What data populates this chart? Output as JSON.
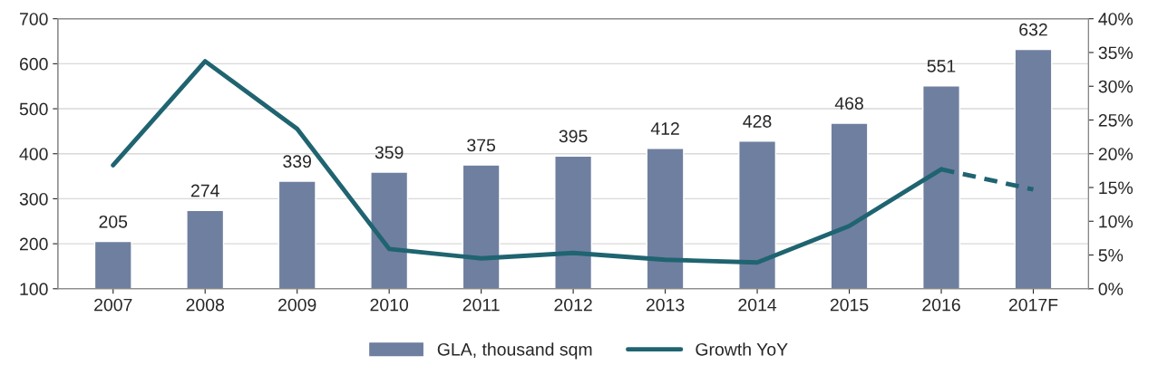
{
  "chart_data": {
    "type": "bar",
    "categories": [
      "2007",
      "2008",
      "2009",
      "2010",
      "2011",
      "2012",
      "2013",
      "2014",
      "2015",
      "2016",
      "2017F"
    ],
    "series": [
      {
        "name": "GLA, thousand sqm",
        "color": "#6f7fa0",
        "values": [
          205,
          274,
          339,
          359,
          375,
          395,
          412,
          428,
          468,
          551,
          632
        ],
        "value_labels": [
          "205",
          "274",
          "339",
          "359",
          "375",
          "395",
          "412",
          "428",
          "468",
          "551",
          "632"
        ]
      },
      {
        "name": "Growth YoY",
        "type": "line",
        "axis": "y2",
        "color": "#1f6470",
        "line_style": "solid",
        "values": [
          18.3,
          33.7,
          23.7,
          5.9,
          4.5,
          5.3,
          4.3,
          3.9,
          9.3,
          17.7,
          null
        ]
      },
      {
        "type": "line",
        "axis": "y2",
        "color": "#1f6470",
        "line_style": "dashed",
        "values": [
          null,
          null,
          null,
          null,
          null,
          null,
          null,
          null,
          null,
          17.7,
          14.7
        ]
      }
    ],
    "ylim": [
      100,
      700
    ],
    "yticks": [
      100,
      200,
      300,
      400,
      500,
      600,
      700
    ],
    "y2lim": [
      0,
      40
    ],
    "y2ticks": [
      {
        "value": 0,
        "label": "0%"
      },
      {
        "value": 5,
        "label": "5%"
      },
      {
        "value": 10,
        "label": "10%"
      },
      {
        "value": 15,
        "label": "15%"
      },
      {
        "value": 20,
        "label": "20%"
      },
      {
        "value": 25,
        "label": "25%"
      },
      {
        "value": 30,
        "label": "30%"
      },
      {
        "value": 35,
        "label": "35%"
      },
      {
        "value": 40,
        "label": "40%"
      }
    ],
    "grid": "y",
    "legend": "bottom"
  }
}
